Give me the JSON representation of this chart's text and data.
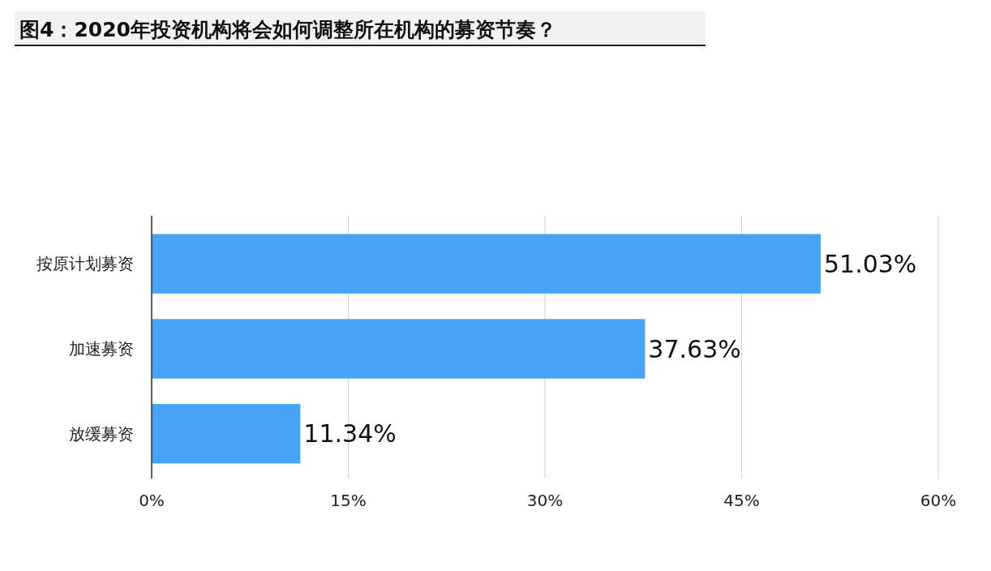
{
  "chart_data": {
    "type": "bar",
    "orientation": "horizontal",
    "title": "图4：2020年投资机构将会如何调整所在机构的募资节奏？",
    "categories": [
      "按原计划募资",
      "加速募资",
      "放缓募资"
    ],
    "values": [
      51.03,
      37.63,
      11.34
    ],
    "value_labels": [
      "51.03%",
      "37.63%",
      "11.34%"
    ],
    "color": "#46a3f5",
    "xlim": [
      0,
      60
    ],
    "xticks": [
      {
        "value": 0,
        "label": "0%"
      },
      {
        "value": 15,
        "label": "15%"
      },
      {
        "value": 30,
        "label": "30%"
      },
      {
        "value": 45,
        "label": "45%"
      },
      {
        "value": 60,
        "label": "60%"
      }
    ],
    "grid": "x"
  }
}
